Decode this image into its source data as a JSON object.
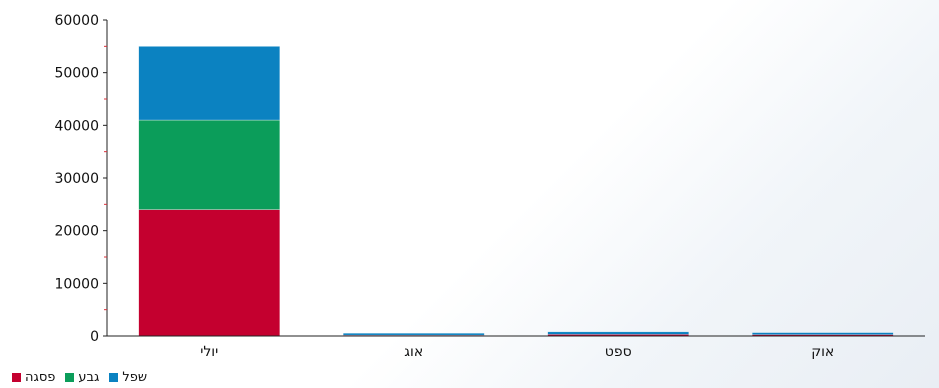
{
  "chart_data": {
    "type": "bar",
    "stacked": true,
    "categories": [
      "יולי",
      "אוג",
      "ספט",
      "אוק"
    ],
    "series": [
      {
        "name": "פסגה",
        "color": "#c4002f",
        "values": [
          24000,
          150,
          300,
          250
        ]
      },
      {
        "name": "גבע",
        "color": "#0b9d5a",
        "values": [
          17000,
          0,
          0,
          0
        ]
      },
      {
        "name": "שפל",
        "color": "#0b82c1",
        "values": [
          14000,
          250,
          500,
          400
        ]
      }
    ],
    "ylim": [
      0,
      60000
    ],
    "yticks": [
      0,
      10000,
      20000,
      30000,
      40000,
      50000,
      60000
    ],
    "title": "",
    "xlabel": "",
    "ylabel": "",
    "grid": false,
    "legend_position": "bottom-left"
  }
}
